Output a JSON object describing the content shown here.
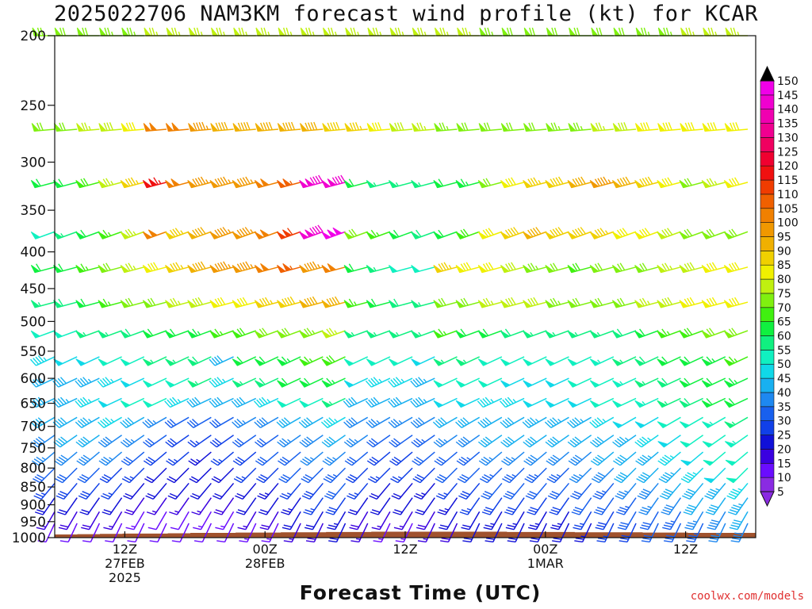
{
  "title": "2025022706 NAM3KM forecast wind profile (kt) for KCAR",
  "xlabel": "Forecast Time (UTC)",
  "credit": "coolwx.com/models",
  "chart_data": {
    "type": "wind-barb time-height profile",
    "title": "2025022706 NAM3KM forecast wind profile (kt) for KCAR",
    "xlabel": "Forecast Time (UTC)",
    "ylabel": "",
    "y_axis": {
      "reversed": true,
      "ticks": [
        200,
        250,
        300,
        350,
        400,
        450,
        500,
        550,
        600,
        650,
        700,
        750,
        800,
        850,
        900,
        950,
        1000
      ],
      "range": [
        1000,
        200
      ]
    },
    "x_axis": {
      "range_hours": [
        0,
        60
      ],
      "ticks": [
        {
          "hour": 6,
          "lines": [
            "12Z",
            "27FEB",
            "2025"
          ]
        },
        {
          "hour": 18,
          "lines": [
            "00Z",
            "28FEB"
          ]
        },
        {
          "hour": 30,
          "lines": [
            "12Z"
          ]
        },
        {
          "hour": 42,
          "lines": [
            "00Z",
            "1MAR"
          ]
        },
        {
          "hour": 54,
          "lines": [
            "12Z"
          ]
        }
      ]
    },
    "colorbar": {
      "min_arrow": true,
      "max_arrow": true,
      "levels": [
        5,
        10,
        15,
        20,
        25,
        30,
        35,
        40,
        45,
        50,
        55,
        60,
        65,
        70,
        75,
        80,
        85,
        90,
        95,
        100,
        105,
        110,
        115,
        120,
        125,
        130,
        135,
        140,
        145,
        150
      ],
      "colors": [
        "#8a2be2",
        "#6a0dff",
        "#3a00e0",
        "#1010d8",
        "#1040e8",
        "#1860ee",
        "#1e88f0",
        "#18b0f0",
        "#10d8e8",
        "#10f0c0",
        "#10f080",
        "#10f040",
        "#40f010",
        "#80f010",
        "#c0f010",
        "#f0f000",
        "#f0d000",
        "#f0b000",
        "#f09800",
        "#f08000",
        "#f06000",
        "#f03c00",
        "#f01010",
        "#f00030",
        "#f00060",
        "#f00090",
        "#f000b0",
        "#f000d0",
        "#f000e8"
      ]
    },
    "surface_pressure_hpa": [
      990,
      989,
      988,
      987,
      987,
      986,
      985,
      985,
      984,
      984,
      983,
      983,
      982,
      982,
      981,
      981,
      981,
      981,
      981,
      981,
      982,
      982,
      982,
      983,
      983,
      983,
      984,
      984,
      985,
      985,
      985,
      985
    ],
    "series": [
      {
        "pressure": 200,
        "speeds_kt": [
          70,
          72,
          72,
          73,
          74,
          75,
          76,
          76,
          76,
          76,
          76,
          76,
          76,
          76,
          76,
          76,
          76,
          76,
          75,
          75,
          74,
          72,
          72,
          72,
          70,
          72,
          72,
          74,
          74,
          75,
          75,
          76
        ],
        "direction_deg": 270
      },
      {
        "pressure": 270,
        "speeds_kt": [
          70,
          72,
          75,
          78,
          80,
          100,
          100,
          95,
          92,
          90,
          90,
          92,
          90,
          88,
          86,
          82,
          78,
          76,
          74,
          72,
          72,
          72,
          72,
          74,
          74,
          76,
          78,
          80,
          80,
          80,
          82,
          82
        ],
        "direction_deg": 265
      },
      {
        "pressure": 320,
        "speeds_kt": [
          60,
          62,
          68,
          75,
          85,
          115,
          100,
          95,
          95,
          95,
          100,
          105,
          140,
          140,
          60,
          55,
          55,
          55,
          62,
          64,
          70,
          82,
          86,
          88,
          90,
          95,
          92,
          88,
          80,
          70,
          75,
          80
        ],
        "direction_deg": 255
      },
      {
        "pressure": 375,
        "speeds_kt": [
          50,
          55,
          60,
          65,
          75,
          100,
          85,
          90,
          95,
          95,
          100,
          110,
          140,
          150,
          70,
          65,
          60,
          58,
          62,
          68,
          80,
          88,
          90,
          88,
          88,
          85,
          82,
          80,
          78,
          70,
          70,
          70
        ],
        "direction_deg": 250
      },
      {
        "pressure": 420,
        "speeds_kt": [
          60,
          62,
          65,
          70,
          75,
          80,
          85,
          90,
          95,
          95,
          100,
          105,
          95,
          100,
          60,
          55,
          50,
          50,
          85,
          82,
          80,
          78,
          74,
          72,
          68,
          70,
          72,
          72,
          75,
          78,
          80,
          82
        ],
        "direction_deg": 255
      },
      {
        "pressure": 470,
        "speeds_kt": [
          55,
          58,
          60,
          65,
          70,
          72,
          75,
          78,
          80,
          82,
          85,
          88,
          90,
          92,
          65,
          60,
          58,
          56,
          70,
          72,
          75,
          78,
          78,
          74,
          72,
          70,
          72,
          75,
          78,
          80,
          80,
          82
        ],
        "direction_deg": 255
      },
      {
        "pressure": 515,
        "speeds_kt": [
          50,
          52,
          55,
          55,
          58,
          60,
          62,
          64,
          66,
          68,
          70,
          72,
          74,
          76,
          55,
          55,
          55,
          55,
          65,
          62,
          60,
          58,
          56,
          55,
          55,
          56,
          58,
          62,
          65,
          68,
          70,
          72
        ],
        "direction_deg": 250
      },
      {
        "pressure": 560,
        "speeds_kt": [
          45,
          48,
          48,
          50,
          52,
          55,
          55,
          58,
          40,
          60,
          62,
          64,
          66,
          68,
          52,
          50,
          50,
          48,
          55,
          55,
          52,
          50,
          50,
          50,
          52,
          54,
          56,
          58,
          60,
          62,
          64,
          66
        ],
        "direction_deg": 245
      },
      {
        "pressure": 600,
        "speeds_kt": [
          40,
          42,
          44,
          46,
          48,
          50,
          52,
          55,
          45,
          55,
          58,
          60,
          62,
          64,
          48,
          46,
          45,
          44,
          50,
          50,
          50,
          48,
          48,
          48,
          50,
          52,
          54,
          56,
          58,
          60,
          62,
          64
        ],
        "direction_deg": 245
      },
      {
        "pressure": 640,
        "speeds_kt": [
          42,
          44,
          46,
          48,
          50,
          50,
          45,
          40,
          40,
          42,
          45,
          50,
          52,
          55,
          40,
          40,
          42,
          44,
          48,
          48,
          46,
          46,
          48,
          48,
          48,
          50,
          52,
          54,
          56,
          58,
          60,
          60
        ],
        "direction_deg": 245
      },
      {
        "pressure": 680,
        "speeds_kt": [
          40,
          42,
          44,
          46,
          40,
          35,
          32,
          30,
          32,
          35,
          38,
          40,
          42,
          45,
          38,
          36,
          36,
          38,
          40,
          42,
          42,
          42,
          44,
          44,
          44,
          46,
          48,
          48,
          50,
          52,
          54,
          56
        ],
        "direction_deg": 240
      },
      {
        "pressure": 720,
        "speeds_kt": [
          38,
          40,
          40,
          38,
          35,
          30,
          28,
          26,
          28,
          30,
          32,
          35,
          38,
          40,
          35,
          32,
          32,
          34,
          36,
          38,
          40,
          40,
          40,
          40,
          40,
          42,
          44,
          46,
          48,
          50,
          52,
          54
        ],
        "direction_deg": 235
      },
      {
        "pressure": 760,
        "speeds_kt": [
          36,
          38,
          38,
          35,
          30,
          28,
          25,
          24,
          25,
          28,
          30,
          32,
          35,
          36,
          30,
          28,
          28,
          30,
          32,
          34,
          36,
          36,
          38,
          38,
          38,
          40,
          42,
          44,
          46,
          48,
          50,
          52
        ],
        "direction_deg": 230
      },
      {
        "pressure": 800,
        "speeds_kt": [
          30,
          32,
          30,
          28,
          25,
          22,
          22,
          22,
          22,
          25,
          28,
          30,
          32,
          34,
          28,
          26,
          26,
          28,
          30,
          32,
          34,
          34,
          34,
          34,
          36,
          38,
          40,
          42,
          44,
          46,
          48,
          50
        ],
        "direction_deg": 225
      },
      {
        "pressure": 840,
        "speeds_kt": [
          25,
          28,
          28,
          25,
          22,
          20,
          20,
          20,
          20,
          22,
          24,
          26,
          28,
          30,
          25,
          22,
          22,
          24,
          26,
          28,
          30,
          30,
          30,
          30,
          32,
          34,
          36,
          38,
          40,
          42,
          44,
          46
        ],
        "direction_deg": 220
      },
      {
        "pressure": 880,
        "speeds_kt": [
          20,
          22,
          22,
          20,
          18,
          16,
          16,
          16,
          18,
          20,
          22,
          24,
          26,
          28,
          22,
          20,
          20,
          22,
          24,
          26,
          28,
          28,
          28,
          28,
          30,
          32,
          34,
          36,
          38,
          40,
          42,
          44
        ],
        "direction_deg": 215
      },
      {
        "pressure": 920,
        "speeds_kt": [
          15,
          18,
          18,
          16,
          14,
          12,
          12,
          14,
          14,
          16,
          18,
          20,
          22,
          24,
          18,
          16,
          16,
          18,
          20,
          22,
          24,
          24,
          24,
          24,
          26,
          28,
          30,
          32,
          34,
          36,
          38,
          40
        ],
        "direction_deg": 210
      },
      {
        "pressure": 955,
        "speeds_kt": [
          10,
          12,
          12,
          12,
          10,
          10,
          10,
          12,
          12,
          14,
          14,
          16,
          18,
          20,
          15,
          14,
          14,
          16,
          18,
          20,
          20,
          20,
          22,
          22,
          24,
          26,
          28,
          30,
          32,
          34,
          36,
          38
        ],
        "direction_deg": 205
      }
    ]
  }
}
